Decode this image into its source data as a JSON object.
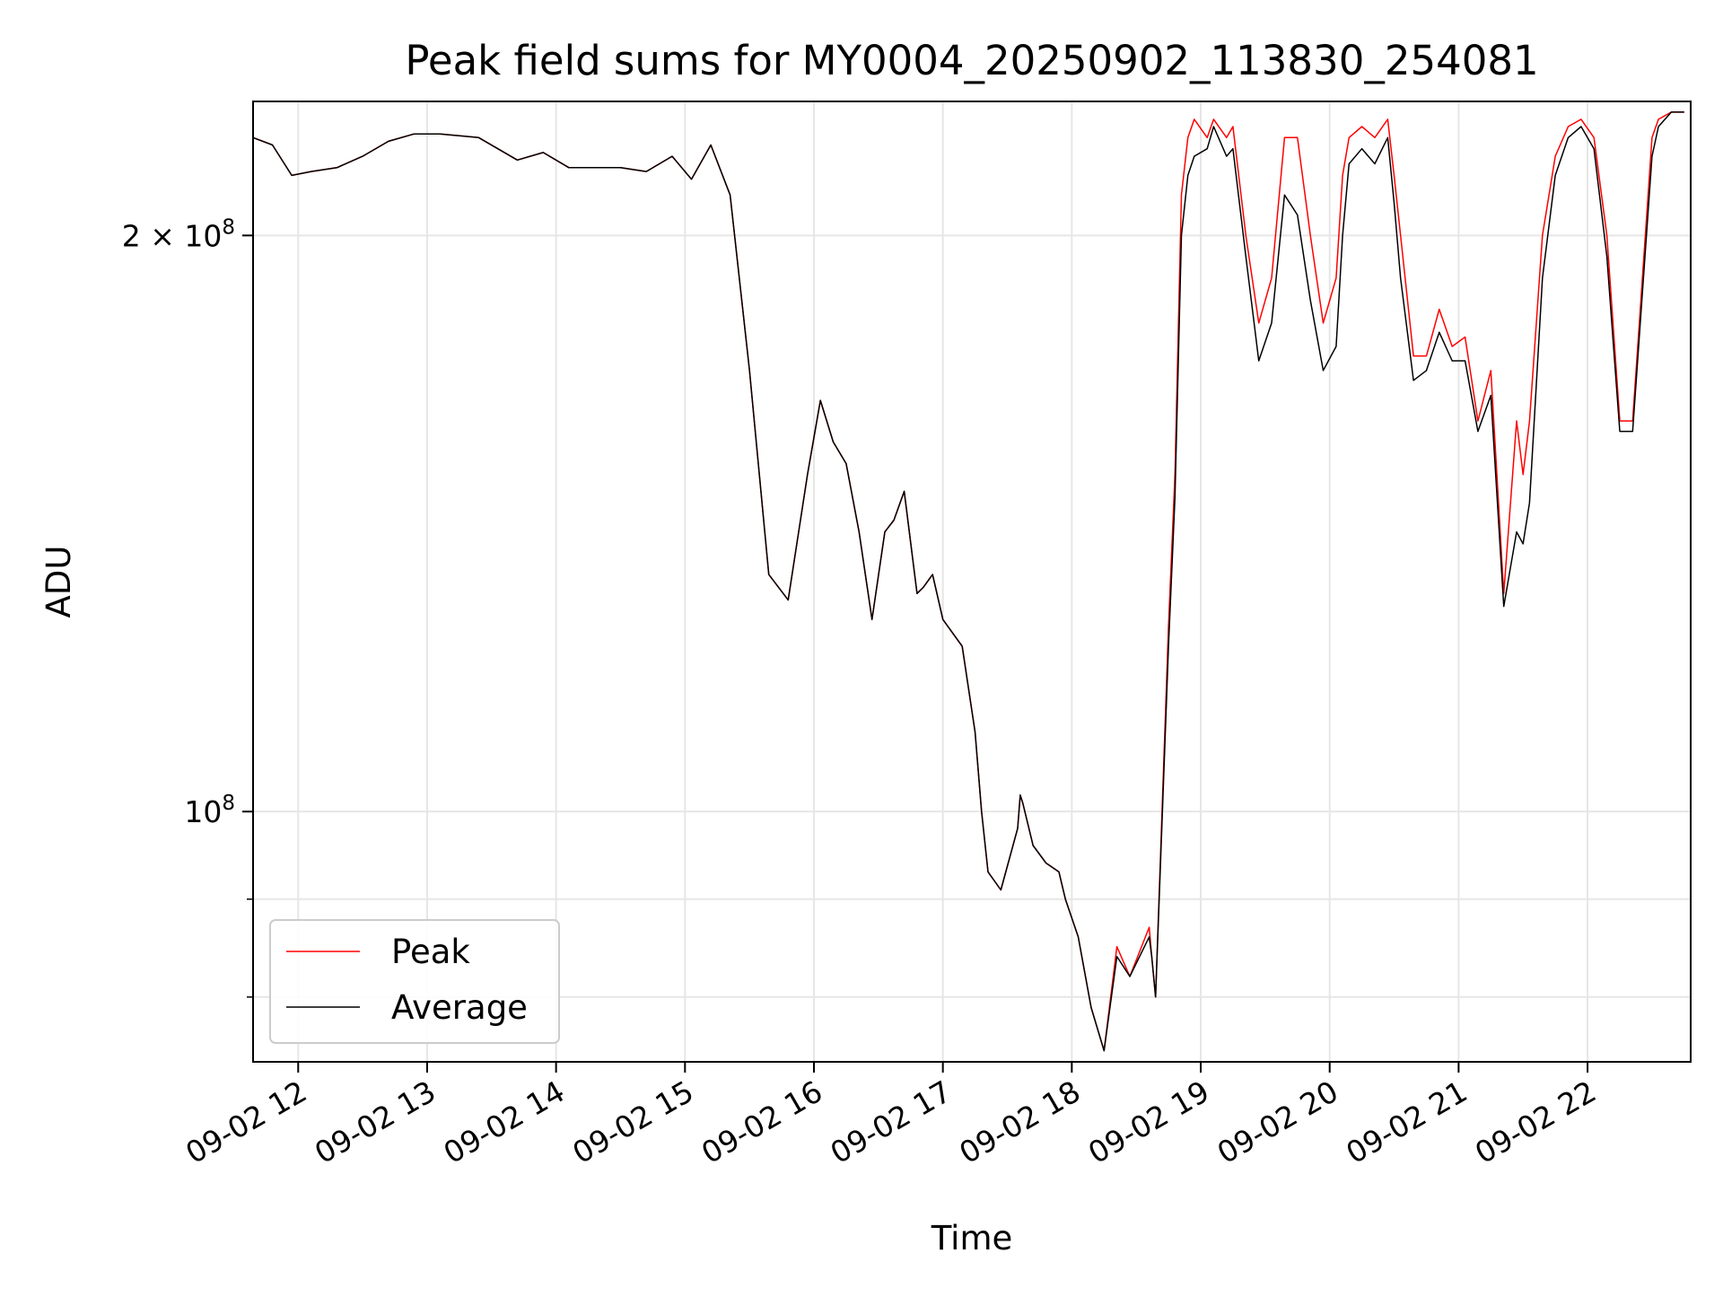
{
  "chart_data": {
    "type": "line",
    "title": "Peak field sums for MY0004_20250902_113830_254081",
    "xlabel": "Time",
    "ylabel": "ADU",
    "x_tick_labels": [
      "09-02 12",
      "09-02 13",
      "09-02 14",
      "09-02 15",
      "09-02 16",
      "09-02 17",
      "09-02 18",
      "09-02 19",
      "09-02 20",
      "09-02 21",
      "09-02 22"
    ],
    "x_tick_hours": [
      12,
      13,
      14,
      15,
      16,
      17,
      18,
      19,
      20,
      21,
      22
    ],
    "xlim_hours": [
      11.65,
      22.8
    ],
    "y_scale": "log",
    "ylim": [
      74000000,
      235000000
    ],
    "y_major_ticks": [
      {
        "value": 100000000,
        "label_base": "10",
        "label_exp": "8"
      },
      {
        "value": 200000000,
        "label_base": "2 × 10",
        "label_exp": "8"
      }
    ],
    "y_minor_ticks": [
      80000000,
      90000000
    ],
    "grid": true,
    "legend_position": "lower-left",
    "series": [
      {
        "name": "Peak",
        "color": "#ff0000",
        "x_hours": [
          11.65,
          11.8,
          11.95,
          12.1,
          12.3,
          12.5,
          12.7,
          12.9,
          13.1,
          13.4,
          13.7,
          13.9,
          14.1,
          14.3,
          14.5,
          14.7,
          14.9,
          15.05,
          15.2,
          15.35,
          15.5,
          15.65,
          15.8,
          15.95,
          16.05,
          16.15,
          16.25,
          16.35,
          16.45,
          16.55,
          16.62,
          16.7,
          16.8,
          16.85,
          16.92,
          17.0,
          17.15,
          17.25,
          17.3,
          17.35,
          17.45,
          17.58,
          17.6,
          17.62,
          17.7,
          17.8,
          17.9,
          17.95,
          18.05,
          18.15,
          18.25,
          18.35,
          18.45,
          18.6,
          18.62,
          18.65,
          18.75,
          18.8,
          18.85,
          18.9,
          18.95,
          19.05,
          19.1,
          19.2,
          19.25,
          19.35,
          19.45,
          19.55,
          19.65,
          19.75,
          19.85,
          19.95,
          20.05,
          20.1,
          20.15,
          20.25,
          20.35,
          20.45,
          20.5,
          20.55,
          20.65,
          20.75,
          20.85,
          20.95,
          21.05,
          21.15,
          21.25,
          21.35,
          21.45,
          21.5,
          21.55,
          21.65,
          21.75,
          21.85,
          21.95,
          22.05,
          22.15,
          22.25,
          22.35,
          22.5,
          22.55,
          22.65,
          22.75
        ],
        "values": [
          225000000,
          223000000,
          215000000,
          216000000,
          217000000,
          220000000,
          224000000,
          226000000,
          226000000,
          225000000,
          219000000,
          221000000,
          217000000,
          217000000,
          217000000,
          216000000,
          220000000,
          214000000,
          223000000,
          210000000,
          170000000,
          133000000,
          129000000,
          150000000,
          164000000,
          156000000,
          152000000,
          140000000,
          126000000,
          140000000,
          142000000,
          147000000,
          130000000,
          131000000,
          133000000,
          126000000,
          122000000,
          110000000,
          100000000,
          93000000,
          91000000,
          98000000,
          102000000,
          101000000,
          96000000,
          94000000,
          93000000,
          90000000,
          86000000,
          79000000,
          75000000,
          85000000,
          82000000,
          87000000,
          84000000,
          80000000,
          125000000,
          150000000,
          210000000,
          225000000,
          230000000,
          225000000,
          230000000,
          225000000,
          228000000,
          200000000,
          180000000,
          190000000,
          225000000,
          225000000,
          200000000,
          180000000,
          190000000,
          215000000,
          225000000,
          228000000,
          225000000,
          230000000,
          215000000,
          200000000,
          173000000,
          173000000,
          183000000,
          175000000,
          177000000,
          160000000,
          170000000,
          130000000,
          160000000,
          150000000,
          160000000,
          200000000,
          220000000,
          228000000,
          230000000,
          225000000,
          200000000,
          160000000,
          160000000,
          225000000,
          230000000,
          232000000,
          232000000
        ]
      },
      {
        "name": "Average",
        "color": "#000000",
        "x_hours": [
          11.65,
          11.8,
          11.95,
          12.1,
          12.3,
          12.5,
          12.7,
          12.9,
          13.1,
          13.4,
          13.7,
          13.9,
          14.1,
          14.3,
          14.5,
          14.7,
          14.9,
          15.05,
          15.2,
          15.35,
          15.5,
          15.65,
          15.8,
          15.95,
          16.05,
          16.15,
          16.25,
          16.35,
          16.45,
          16.55,
          16.62,
          16.7,
          16.8,
          16.85,
          16.92,
          17.0,
          17.15,
          17.25,
          17.3,
          17.35,
          17.45,
          17.58,
          17.6,
          17.62,
          17.7,
          17.8,
          17.9,
          17.95,
          18.05,
          18.15,
          18.25,
          18.35,
          18.45,
          18.6,
          18.62,
          18.65,
          18.75,
          18.8,
          18.85,
          18.9,
          18.95,
          19.05,
          19.1,
          19.2,
          19.25,
          19.35,
          19.45,
          19.55,
          19.65,
          19.75,
          19.85,
          19.95,
          20.05,
          20.1,
          20.15,
          20.25,
          20.35,
          20.45,
          20.5,
          20.55,
          20.65,
          20.75,
          20.85,
          20.95,
          21.05,
          21.15,
          21.25,
          21.35,
          21.45,
          21.5,
          21.55,
          21.65,
          21.75,
          21.85,
          21.95,
          22.05,
          22.15,
          22.25,
          22.35,
          22.5,
          22.55,
          22.65,
          22.75
        ],
        "values": [
          225000000,
          223000000,
          215000000,
          216000000,
          217000000,
          220000000,
          224000000,
          226000000,
          226000000,
          225000000,
          219000000,
          221000000,
          217000000,
          217000000,
          217000000,
          216000000,
          220000000,
          214000000,
          223000000,
          210000000,
          170000000,
          133000000,
          129000000,
          150000000,
          164000000,
          156000000,
          152000000,
          140000000,
          126000000,
          140000000,
          142000000,
          147000000,
          130000000,
          131000000,
          133000000,
          126000000,
          122000000,
          110000000,
          100000000,
          93000000,
          91000000,
          98000000,
          102000000,
          101000000,
          96000000,
          94000000,
          93000000,
          90000000,
          86000000,
          79000000,
          75000000,
          84000000,
          82000000,
          86000000,
          84000000,
          80000000,
          122000000,
          146000000,
          200000000,
          215000000,
          220000000,
          222000000,
          228000000,
          220000000,
          222000000,
          195000000,
          172000000,
          180000000,
          210000000,
          205000000,
          185000000,
          170000000,
          175000000,
          200000000,
          218000000,
          222000000,
          218000000,
          225000000,
          208000000,
          190000000,
          168000000,
          170000000,
          178000000,
          172000000,
          172000000,
          158000000,
          165000000,
          128000000,
          140000000,
          138000000,
          145000000,
          190000000,
          215000000,
          225000000,
          228000000,
          222000000,
          195000000,
          158000000,
          158000000,
          220000000,
          228000000,
          232000000,
          232000000
        ]
      }
    ]
  }
}
